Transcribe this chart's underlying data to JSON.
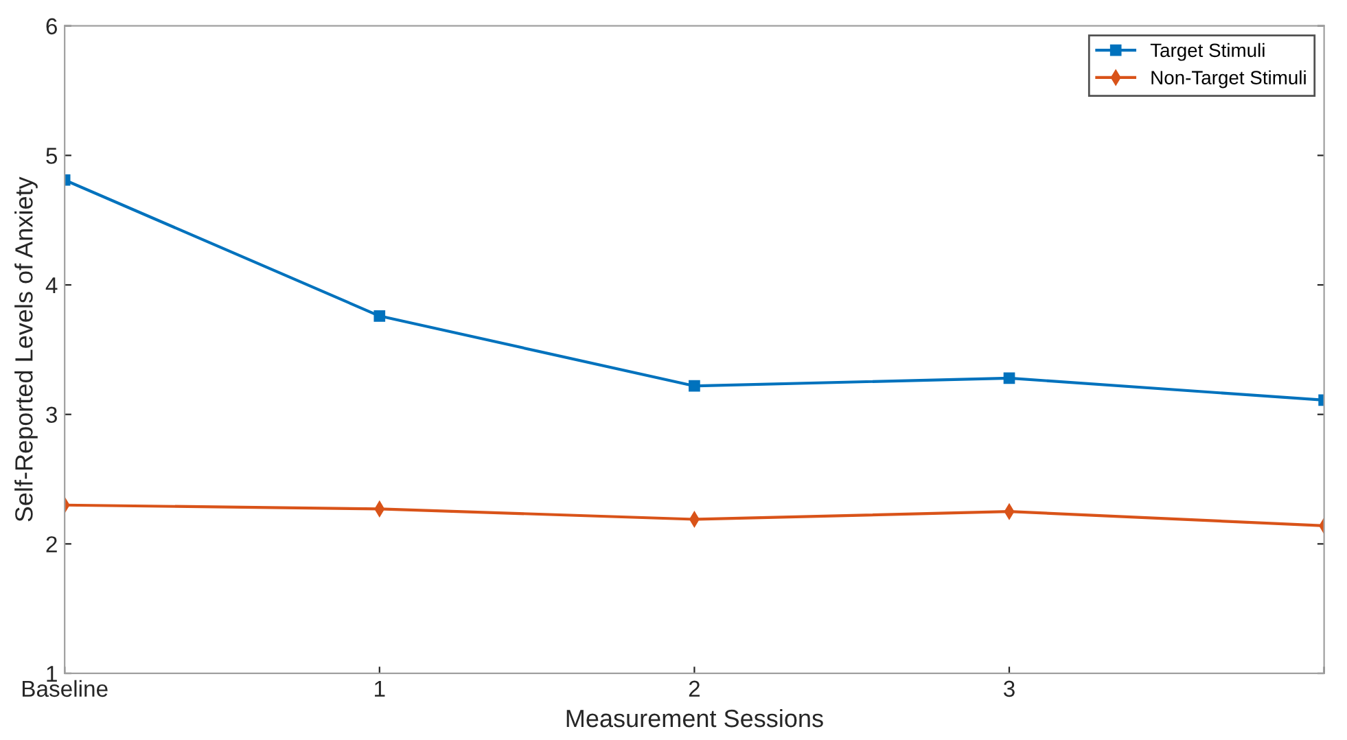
{
  "chart_data": {
    "type": "line",
    "xlabel": "Measurement Sessions",
    "ylabel": "Self-Reported Levels of Anxiety",
    "categories": [
      "Baseline",
      "1",
      "2",
      "3",
      null
    ],
    "series": [
      {
        "name": "Target Stimuli",
        "color": "#0072bd",
        "marker": "square",
        "values": [
          4.81,
          3.76,
          3.22,
          3.28,
          3.11
        ]
      },
      {
        "name": "Non-Target Stimuli",
        "color": "#d95319",
        "marker": "diamond",
        "values": [
          2.3,
          2.27,
          2.19,
          2.25,
          2.14
        ]
      }
    ],
    "ylim": [
      1,
      6
    ],
    "yticks": [
      1,
      2,
      3,
      4,
      5,
      6
    ],
    "grid": false,
    "legend": "top right",
    "line_style": "solid"
  }
}
